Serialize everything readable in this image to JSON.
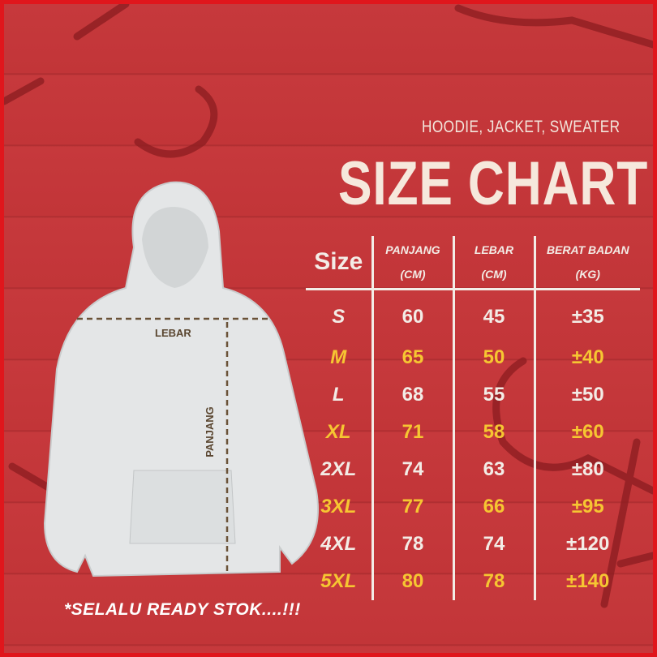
{
  "header": {
    "subtitle": "HOODIE, JACKET, SWEATER",
    "title": "SIZE CHART"
  },
  "table": {
    "headers": [
      {
        "line1": "Size",
        "line2": ""
      },
      {
        "line1": "PANJANG",
        "line2": "(CM)"
      },
      {
        "line1": "LEBAR",
        "line2": "(CM)"
      },
      {
        "line1": "BERAT BADAN",
        "line2": "(KG)"
      }
    ],
    "rows": [
      [
        "S",
        "60",
        "45",
        "±35"
      ],
      [
        "M",
        "65",
        "50",
        "±40"
      ],
      [
        "L",
        "68",
        "55",
        "±50"
      ],
      [
        "XL",
        "71",
        "58",
        "±60"
      ],
      [
        "2XL",
        "74",
        "63",
        "±80"
      ],
      [
        "3XL",
        "77",
        "66",
        "±95"
      ],
      [
        "4XL",
        "78",
        "74",
        "±120"
      ],
      [
        "5XL",
        "80",
        "78",
        "±140"
      ]
    ]
  },
  "hoodie": {
    "width_label": "LEBAR",
    "length_label": "PANJANG"
  },
  "note": "*SELALU READY STOK....!!!",
  "colors": {
    "background": "#c6393c",
    "border": "#e0161c",
    "highlight": "#f6c632",
    "text": "#f3ece6"
  }
}
